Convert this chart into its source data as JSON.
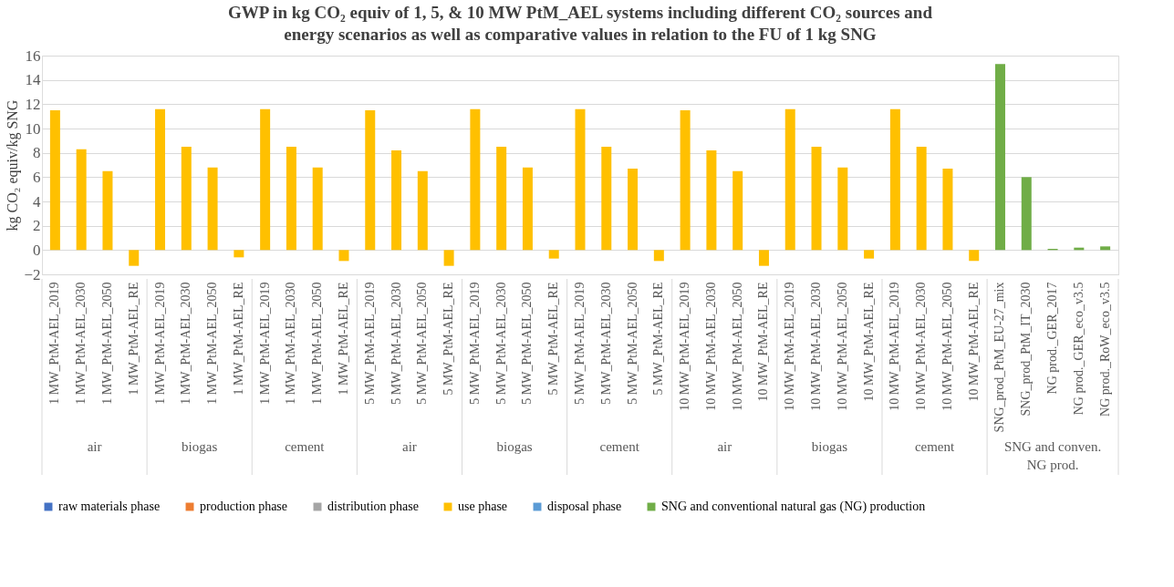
{
  "chart_data": {
    "type": "bar",
    "title": "GWP in kg CO₂ equiv of 1, 5, & 10 MW PtM_AEL systems including different CO₂ sources and energy scenarios as well as comparative values in relation to the FU of 1 kg SNG",
    "ylabel": "kg CO₂ equiv/kg SNG",
    "categories": [
      "1 MW_PtM-AEL_2019",
      "1 MW_PtM-AEL_2030",
      "1 MW_PtM-AEL_2050",
      "1 MW_PtM-AEL_RE",
      "1 MW_PtM-AEL_2019 ",
      "1 MW_PtM-AEL_2030 ",
      "1 MW_PtM-AEL_2050 ",
      "1 MW_PtM-AEL_RE ",
      "1 MW_PtM-AEL_2019  ",
      "1 MW_PtM-AEL_2030  ",
      "1 MW_PtM-AEL_2050  ",
      "1 MW_PtM-AEL_RE  ",
      "5 MW_PtM-AEL_2019",
      "5 MW_PtM-AEL_2030",
      "5 MW_PtM-AEL_2050",
      "5 MW_PtM-AEL_RE",
      "5 MW_PtM-AEL_2019 ",
      "5 MW_PtM-AEL_2030 ",
      "5 MW_PtM-AEL_2050 ",
      "5 MW_PtM-AEL_RE ",
      "5 MW_PtM-AEL_2019  ",
      "5 MW_PtM-AEL_2030  ",
      "5 MW_PtM-AEL_2050  ",
      "5 MW_PtM-AEL_RE  ",
      "10 MW_PtM-AEL_2019",
      "10 MW_PtM-AEL_2030",
      "10 MW_PtM-AEL_2050",
      "10 MW_PtM-AEL_RE",
      "10 MW_PtM-AEL_2019 ",
      "10 MW_PtM-AEL_2030 ",
      "10 MW_PtM-AEL_2050 ",
      "10 MW_PtM-AEL_RE ",
      "10 MW_PtM-AEL_2019  ",
      "10 MW_PtM-AEL_2030  ",
      "10 MW_PtM-AEL_2050  ",
      "10 MW_PtM-AEL_RE  ",
      "SNG_prod_PtM_EU-27_mix",
      "SNG_prod_PtM_IT_2030",
      "NG prod._GER_2017",
      "NG prod._GER_eco_v3.5",
      "NG prod._RoW_eco_v3.5"
    ],
    "series": [
      {
        "name": "raw materials phase",
        "color": "#4472c4",
        "values": [
          null,
          null,
          null,
          null,
          null,
          null,
          null,
          null,
          null,
          null,
          null,
          null,
          null,
          null,
          null,
          null,
          null,
          null,
          null,
          null,
          null,
          null,
          null,
          null,
          null,
          null,
          null,
          null,
          null,
          null,
          null,
          null,
          null,
          null,
          null,
          null,
          null,
          null,
          null,
          null,
          null
        ]
      },
      {
        "name": "production phase",
        "color": "#ed7d31",
        "values": [
          null,
          null,
          null,
          null,
          null,
          null,
          null,
          null,
          null,
          null,
          null,
          null,
          null,
          null,
          null,
          null,
          null,
          null,
          null,
          null,
          null,
          null,
          null,
          null,
          null,
          null,
          null,
          null,
          null,
          null,
          null,
          null,
          null,
          null,
          null,
          null,
          null,
          null,
          null,
          null,
          null
        ]
      },
      {
        "name": "distribution phase",
        "color": "#a5a5a5",
        "values": [
          null,
          null,
          null,
          null,
          null,
          null,
          null,
          null,
          null,
          null,
          null,
          null,
          null,
          null,
          null,
          null,
          null,
          null,
          null,
          null,
          null,
          null,
          null,
          null,
          null,
          null,
          null,
          null,
          null,
          null,
          null,
          null,
          null,
          null,
          null,
          null,
          null,
          null,
          null,
          null,
          null
        ]
      },
      {
        "name": "use phase",
        "color": "#ffc000",
        "values": [
          11.5,
          8.3,
          6.5,
          -1.3,
          11.6,
          8.5,
          6.8,
          -0.6,
          11.6,
          8.5,
          6.8,
          -0.9,
          11.5,
          8.2,
          6.5,
          -1.3,
          11.6,
          8.5,
          6.8,
          -0.7,
          11.6,
          8.5,
          6.7,
          -0.9,
          11.5,
          8.2,
          6.5,
          -1.3,
          11.6,
          8.5,
          6.8,
          -0.7,
          11.6,
          8.5,
          6.7,
          -0.9,
          null,
          null,
          null,
          null,
          null
        ]
      },
      {
        "name": "disposal phase",
        "color": "#5b9bd5",
        "values": [
          null,
          null,
          null,
          null,
          null,
          null,
          null,
          null,
          null,
          null,
          null,
          null,
          null,
          null,
          null,
          null,
          null,
          null,
          null,
          null,
          null,
          null,
          null,
          null,
          null,
          null,
          null,
          null,
          null,
          null,
          null,
          null,
          null,
          null,
          null,
          null,
          null,
          null,
          null,
          null,
          null
        ]
      },
      {
        "name": "SNG and conventional natural gas (NG) production",
        "color": "#70ad47",
        "values": [
          null,
          null,
          null,
          null,
          null,
          null,
          null,
          null,
          null,
          null,
          null,
          null,
          null,
          null,
          null,
          null,
          null,
          null,
          null,
          null,
          null,
          null,
          null,
          null,
          null,
          null,
          null,
          null,
          null,
          null,
          null,
          null,
          null,
          null,
          null,
          null,
          15.3,
          6.0,
          0.1,
          0.2,
          0.3
        ]
      }
    ],
    "ylim": [
      -2,
      16
    ],
    "yticks": [
      -2,
      0,
      2,
      4,
      6,
      8,
      10,
      12,
      14,
      16
    ],
    "grid": "y",
    "legend": "bottom",
    "annotations": [
      "air",
      "biogas",
      "cement",
      "air",
      "biogas",
      "cement",
      "air",
      "biogas",
      "cement",
      "SNG and conven. NG prod."
    ]
  }
}
